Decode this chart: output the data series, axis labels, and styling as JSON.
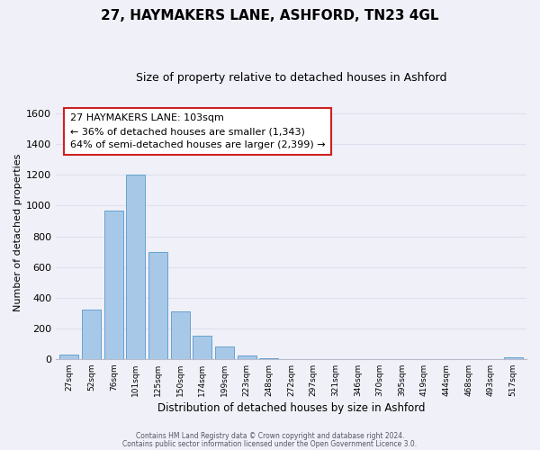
{
  "title": "27, HAYMAKERS LANE, ASHFORD, TN23 4GL",
  "subtitle": "Size of property relative to detached houses in Ashford",
  "xlabel": "Distribution of detached houses by size in Ashford",
  "ylabel": "Number of detached properties",
  "bar_labels": [
    "27sqm",
    "52sqm",
    "76sqm",
    "101sqm",
    "125sqm",
    "150sqm",
    "174sqm",
    "199sqm",
    "223sqm",
    "248sqm",
    "272sqm",
    "297sqm",
    "321sqm",
    "346sqm",
    "370sqm",
    "395sqm",
    "419sqm",
    "444sqm",
    "468sqm",
    "493sqm",
    "517sqm"
  ],
  "bar_values": [
    30,
    320,
    970,
    1200,
    700,
    310,
    150,
    80,
    25,
    5,
    0,
    0,
    0,
    0,
    0,
    0,
    0,
    0,
    0,
    0,
    10
  ],
  "bar_color": "#a8c8e8",
  "bar_edge_color": "#5599cc",
  "ylim": [
    0,
    1650
  ],
  "yticks": [
    0,
    200,
    400,
    600,
    800,
    1000,
    1200,
    1400,
    1600
  ],
  "annotation_title": "27 HAYMAKERS LANE: 103sqm",
  "annotation_line1": "← 36% of detached houses are smaller (1,343)",
  "annotation_line2": "64% of semi-detached houses are larger (2,399) →",
  "footer1": "Contains HM Land Registry data © Crown copyright and database right 2024.",
  "footer2": "Contains public sector information licensed under the Open Government Licence 3.0.",
  "grid_color": "#dde0ee",
  "bg_color": "#f0f0f8",
  "title_fontsize": 11,
  "subtitle_fontsize": 9
}
